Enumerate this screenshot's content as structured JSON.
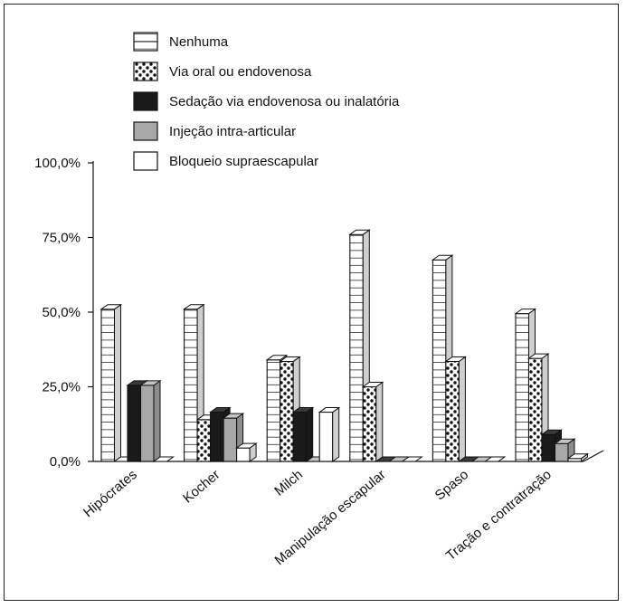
{
  "chart_data": {
    "type": "bar",
    "categories": [
      "Hipócrates",
      "Kocher",
      "Milch",
      "Manipulação escapular",
      "Spaso",
      "Tração e contratração"
    ],
    "series": [
      {
        "name": "Nenhuma",
        "pattern": "grid",
        "values": [
          51.0,
          51.0,
          34.0,
          76.0,
          67.5,
          49.5
        ]
      },
      {
        "name": "Via oral ou endovenosa",
        "pattern": "dots",
        "values": [
          0.0,
          14.0,
          33.5,
          25.0,
          33.5,
          34.5
        ]
      },
      {
        "name": "Sedação via endovenosa ou inalatória",
        "pattern": "black",
        "values": [
          25.5,
          16.5,
          16.5,
          0.0,
          0.0,
          9.0
        ]
      },
      {
        "name": "Injeção intra-articular",
        "pattern": "gray",
        "values": [
          25.5,
          14.5,
          0.0,
          0.0,
          0.0,
          6.0
        ]
      },
      {
        "name": "Bloqueio supraescapular",
        "pattern": "white",
        "values": [
          0.0,
          4.5,
          16.5,
          0.0,
          0.0,
          1.0
        ]
      }
    ],
    "y_ticks": [
      "100,0%",
      "75,0%",
      "50,0%",
      "25,0%",
      "0,0%"
    ],
    "ylim": [
      0,
      100
    ],
    "legend_position": "top",
    "grid": false,
    "three_d": true
  },
  "colors": {
    "black": "#1a1a1a",
    "gray": "#a8a8a8",
    "gray_side": "#8c8c8c",
    "gray_top": "#c4c4c4",
    "white": "#ffffff",
    "line": "#111111"
  }
}
